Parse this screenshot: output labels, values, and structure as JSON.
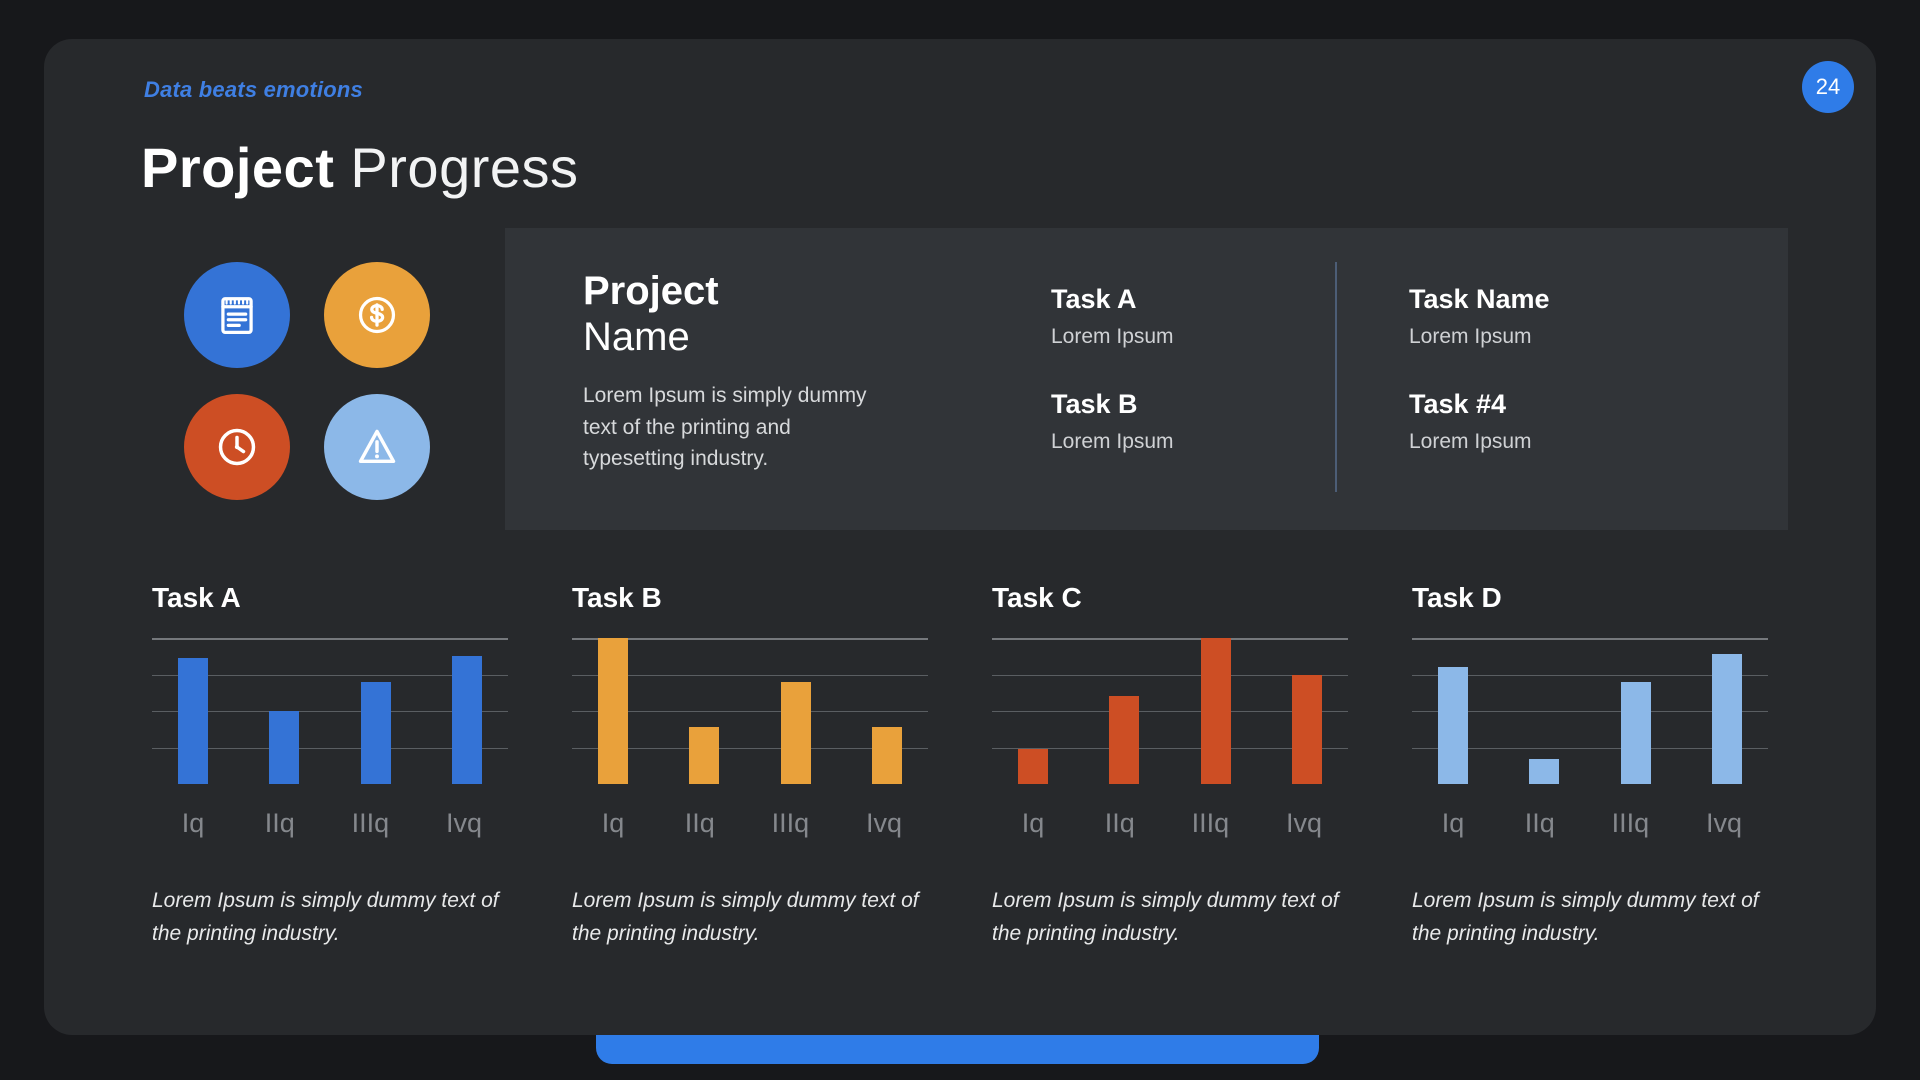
{
  "colors": {
    "accent_blue": "#3f7fe3",
    "badge_blue": "#2f7ce8",
    "strip_blue": "#2f7ce8",
    "divider": "#4c5d76"
  },
  "page": {
    "kicker": "Data beats emotions",
    "page_number": "24",
    "title_bold": "Project",
    "title_light": " Progress"
  },
  "info_panel": {
    "icons": [
      {
        "name": "notes-icon",
        "bg": "#3473d6"
      },
      {
        "name": "dollar-icon",
        "bg": "#e9a13b"
      },
      {
        "name": "clock-icon",
        "bg": "#cd4e24"
      },
      {
        "name": "warning-icon",
        "bg": "#8cb8e8"
      }
    ],
    "heading_bold": "Project",
    "heading_light": "Name",
    "description": "Lorem Ipsum is simply dummy text of the printing and typesetting industry.",
    "tasks_left": [
      {
        "label": "Task A",
        "value": "Lorem Ipsum"
      },
      {
        "label": "Task B",
        "value": "Lorem Ipsum"
      }
    ],
    "tasks_right": [
      {
        "label": "Task Name",
        "value": "Lorem Ipsum"
      },
      {
        "label": "Task #4",
        "value": "Lorem Ipsum"
      }
    ]
  },
  "chart_data": [
    {
      "type": "bar",
      "title": "Task A",
      "categories": [
        "Iq",
        "IIq",
        "IIIq",
        "Ivq"
      ],
      "values": [
        86,
        50,
        70,
        88
      ],
      "ylim": [
        0,
        100
      ],
      "color": "#3473d6",
      "grid": true,
      "caption": "Lorem Ipsum is simply dummy text of the printing industry."
    },
    {
      "type": "bar",
      "title": "Task B",
      "categories": [
        "Iq",
        "IIq",
        "IIIq",
        "Ivq"
      ],
      "values": [
        100,
        39,
        70,
        39
      ],
      "ylim": [
        0,
        100
      ],
      "color": "#e9a13b",
      "grid": true,
      "caption": "Lorem Ipsum is simply dummy text of the printing industry."
    },
    {
      "type": "bar",
      "title": "Task C",
      "categories": [
        "Iq",
        "IIq",
        "IIIq",
        "Ivq"
      ],
      "values": [
        24,
        60,
        100,
        75
      ],
      "ylim": [
        0,
        100
      ],
      "color": "#cd4e24",
      "grid": true,
      "caption": "Lorem Ipsum is simply dummy text of the printing industry."
    },
    {
      "type": "bar",
      "title": "Task D",
      "categories": [
        "Iq",
        "IIq",
        "IIIq",
        "Ivq"
      ],
      "values": [
        80,
        17,
        70,
        89
      ],
      "ylim": [
        0,
        100
      ],
      "color": "#8cb8e8",
      "grid": true,
      "caption": "Lorem Ipsum is simply dummy text of the printing industry."
    }
  ]
}
